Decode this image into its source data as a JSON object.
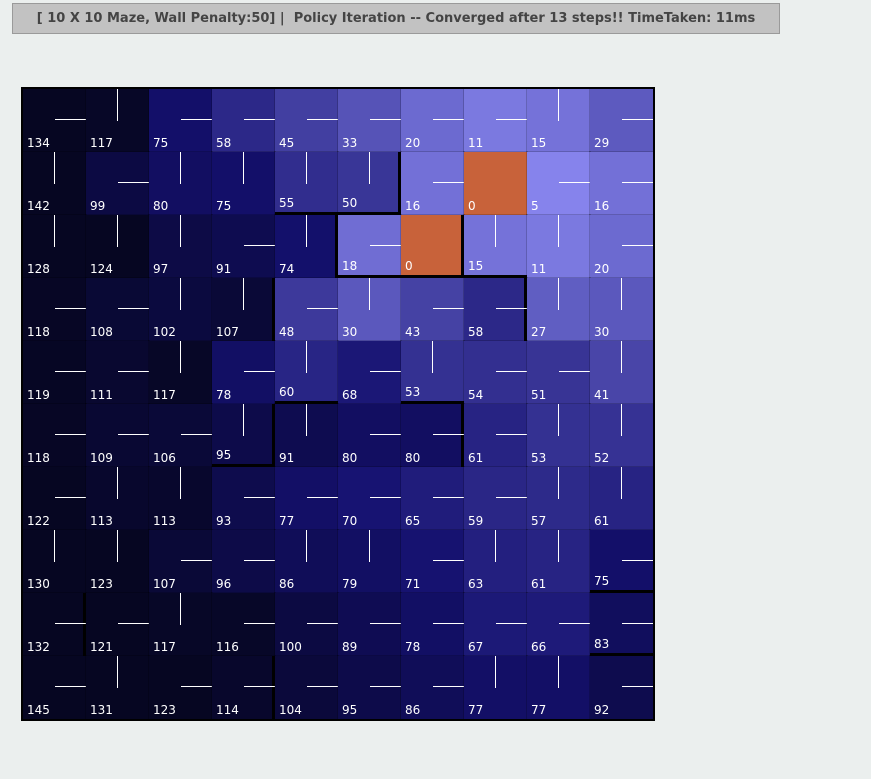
{
  "status": {
    "text": "[ 10 X 10 Maze, Wall Penalty:50] |  Policy Iteration -- Converged after 13 steps!! TimeTaken: 11ms"
  },
  "maze": {
    "rows": 10,
    "cols": 10,
    "goal_color": "#c8623a",
    "values": [
      [
        134,
        117,
        75,
        58,
        45,
        33,
        20,
        11,
        15,
        29
      ],
      [
        142,
        99,
        80,
        75,
        55,
        50,
        16,
        0,
        5,
        16
      ],
      [
        128,
        124,
        97,
        91,
        74,
        18,
        0,
        15,
        11,
        20
      ],
      [
        118,
        108,
        102,
        107,
        48,
        30,
        43,
        58,
        27,
        30
      ],
      [
        119,
        111,
        117,
        78,
        60,
        68,
        53,
        54,
        51,
        41
      ],
      [
        118,
        109,
        106,
        95,
        91,
        80,
        80,
        61,
        53,
        52
      ],
      [
        122,
        113,
        113,
        93,
        77,
        70,
        65,
        59,
        57,
        61
      ],
      [
        130,
        123,
        107,
        96,
        86,
        79,
        71,
        63,
        61,
        75
      ],
      [
        132,
        121,
        117,
        116,
        100,
        89,
        78,
        67,
        66,
        83
      ],
      [
        145,
        131,
        123,
        114,
        104,
        95,
        86,
        77,
        77,
        92
      ]
    ],
    "policy": [
      [
        "E",
        "V",
        "E",
        "E",
        "E",
        "E",
        "E",
        "E",
        "V",
        "E"
      ],
      [
        "V",
        "E",
        "V",
        "V",
        "V",
        "V",
        "E",
        "G",
        "E",
        "E"
      ],
      [
        "V",
        "V",
        "V",
        "E",
        "V",
        "E",
        "G",
        "V",
        "V",
        "E"
      ],
      [
        "E",
        "E",
        "V",
        "V",
        "E",
        "V",
        "E",
        "E",
        "V",
        "V"
      ],
      [
        "E",
        "E",
        "V",
        "E",
        "V",
        "E",
        "V",
        "E",
        "E",
        "V"
      ],
      [
        "E",
        "E",
        "E",
        "V",
        "V",
        "E",
        "E",
        "E",
        "V",
        "V"
      ],
      [
        "E",
        "V",
        "V",
        "E",
        "E",
        "E",
        "E",
        "E",
        "V",
        "V"
      ],
      [
        "V",
        "V",
        "E",
        "E",
        "V",
        "V",
        "E",
        "V",
        "V",
        "E"
      ],
      [
        "E",
        "E",
        "V",
        "E",
        "E",
        "E",
        "E",
        "E",
        "E",
        "E"
      ],
      [
        "E",
        "V",
        "E",
        "E",
        "E",
        "E",
        "E",
        "V",
        "V",
        "E"
      ]
    ]
  }
}
